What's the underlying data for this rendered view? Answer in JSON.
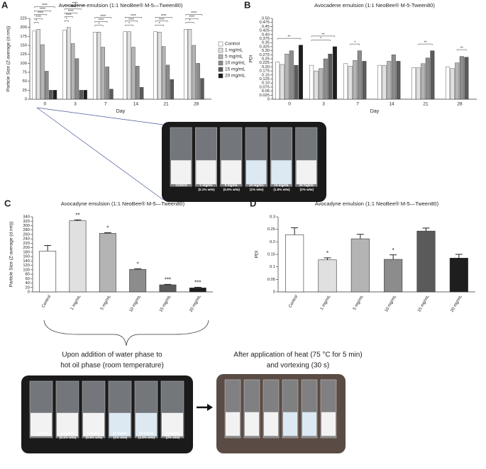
{
  "chart_data": [
    {
      "type": "bar",
      "panel": "A",
      "title": "Avocadene emulsion (1:1 NeoBee® M-5—Tween80)",
      "x_label": "Day",
      "y_label": "Particle Size (Z-average (d.nm))",
      "categories": [
        "0",
        "3",
        "7",
        "14",
        "21",
        "28"
      ],
      "series": [
        {
          "name": "Control",
          "color": "#ffffff",
          "values": [
            190,
            192,
            187,
            188,
            188,
            195
          ]
        },
        {
          "name": "1 mg/mL",
          "color": "#e0e0e0",
          "values": [
            195,
            200,
            187,
            188,
            187,
            195
          ]
        },
        {
          "name": "5 mg/mL",
          "color": "#b4b4b4",
          "values": [
            152,
            155,
            145,
            145,
            147,
            150
          ]
        },
        {
          "name": "10 mg/mL",
          "color": "#8c8c8c",
          "values": [
            78,
            113,
            90,
            92,
            95,
            100
          ]
        },
        {
          "name": "15 mg/mL",
          "color": "#5a5a5a",
          "values": [
            25,
            25,
            28,
            33,
            55,
            58
          ]
        },
        {
          "name": "20 mg/mL",
          "color": "#1e1e1e",
          "values": [
            25,
            25,
            null,
            null,
            null,
            null
          ]
        }
      ],
      "ylim": [
        0,
        225
      ],
      "yticks": [
        0,
        25,
        50,
        75,
        100,
        125,
        150,
        175,
        200,
        225
      ],
      "legend": "right",
      "brackets": [
        {
          "category": 0,
          "from": 0,
          "to": 1,
          "label": "*"
        },
        {
          "category": 0,
          "from": 0,
          "to": 2,
          "label": "****"
        },
        {
          "category": 0,
          "from": 0,
          "to": 3,
          "label": "****"
        },
        {
          "category": 0,
          "from": 0,
          "to": 4,
          "label": "****"
        },
        {
          "category": 0,
          "from": 0,
          "to": 5,
          "label": "****"
        },
        {
          "category": 1,
          "from": 0,
          "to": 1,
          "label": "*"
        },
        {
          "category": 1,
          "from": 0,
          "to": 2,
          "label": "****"
        },
        {
          "category": 1,
          "from": 0,
          "to": 3,
          "label": "****"
        },
        {
          "category": 1,
          "from": 0,
          "to": 4,
          "label": "****"
        },
        {
          "category": 1,
          "from": 0,
          "to": 5,
          "label": "****"
        },
        {
          "category": 2,
          "from": 0,
          "to": 2,
          "label": "*"
        },
        {
          "category": 2,
          "from": 0,
          "to": 3,
          "label": "****"
        },
        {
          "category": 2,
          "from": 0,
          "to": 4,
          "label": "****"
        },
        {
          "category": 3,
          "from": 0,
          "to": 2,
          "label": "*"
        },
        {
          "category": 3,
          "from": 0,
          "to": 3,
          "label": "****"
        },
        {
          "category": 3,
          "from": 0,
          "to": 4,
          "label": "****"
        },
        {
          "category": 4,
          "from": 0,
          "to": 2,
          "label": "*"
        },
        {
          "category": 4,
          "from": 0,
          "to": 3,
          "label": "****"
        },
        {
          "category": 4,
          "from": 0,
          "to": 4,
          "label": "****"
        },
        {
          "category": 5,
          "from": 0,
          "to": 2,
          "label": "*"
        },
        {
          "category": 5,
          "from": 0,
          "to": 3,
          "label": "****"
        },
        {
          "category": 5,
          "from": 0,
          "to": 4,
          "label": "****"
        }
      ]
    },
    {
      "type": "bar",
      "panel": "B",
      "title": "Avocadene emulsion (1:1 NeoBee® M-5-Tween80)",
      "x_label": "Day",
      "y_label": "PDI",
      "categories": [
        "0",
        "3",
        "7",
        "14",
        "21",
        "28"
      ],
      "series": [
        {
          "name": "Control",
          "color": "#ffffff",
          "values": [
            0.23,
            0.21,
            0.22,
            0.21,
            0.195,
            0.2
          ]
        },
        {
          "name": "1 mg/mL",
          "color": "#e0e0e0",
          "values": [
            0.215,
            0.175,
            0.205,
            0.21,
            0.195,
            0.19
          ]
        },
        {
          "name": "5 mg/mL",
          "color": "#b4b4b4",
          "values": [
            0.28,
            0.19,
            0.24,
            0.235,
            0.22,
            0.225
          ]
        },
        {
          "name": "10 mg/mL",
          "color": "#8c8c8c",
          "values": [
            0.3,
            0.25,
            0.3,
            0.275,
            0.255,
            0.265
          ]
        },
        {
          "name": "15 mg/mL",
          "color": "#5a5a5a",
          "values": [
            0.21,
            0.28,
            0.235,
            0.235,
            0.3,
            0.26
          ]
        },
        {
          "name": "20 mg/mL",
          "color": "#1e1e1e",
          "values": [
            0.335,
            0.325,
            null,
            null,
            null,
            null
          ]
        }
      ],
      "ylim": [
        0,
        0.5
      ],
      "yticks": [
        0,
        0.025,
        0.05,
        0.075,
        {
          "value": 0.1,
          "label": "0.10"
        },
        0.125,
        0.15,
        0.175,
        {
          "value": 0.2,
          "label": "0.20"
        },
        0.225,
        0.25,
        0.275,
        {
          "value": 0.3,
          "label": "0.30"
        },
        0.325,
        0.35,
        0.375,
        {
          "value": 0.4,
          "label": "0.40"
        },
        0.425,
        0.45,
        0.475,
        {
          "value": 0.5,
          "label": "0.50"
        }
      ],
      "brackets": [
        {
          "category": 0,
          "from": 0,
          "to": 5,
          "label": "**"
        },
        {
          "category": 1,
          "from": 0,
          "to": 4,
          "label": "*"
        },
        {
          "category": 1,
          "from": 0,
          "to": 5,
          "label": "**"
        },
        {
          "category": 2,
          "from": 1,
          "to": 3,
          "label": "*"
        },
        {
          "category": 4,
          "from": 1,
          "to": 4,
          "label": "**"
        },
        {
          "category": 5,
          "from": 2,
          "to": 4,
          "label": "**"
        }
      ]
    },
    {
      "type": "bar",
      "panel": "C",
      "title": "Avocadyne emulsion (1:1 NeoBee® M-5—Tween80)",
      "y_label": "Particle Size (Z-average (d.nm))",
      "categories": [
        "Control",
        "1 mg/mL",
        "5 mg/mL",
        "10 mg/mL",
        "15 mg/mL",
        "20 mg/mL"
      ],
      "values": [
        185,
        322,
        265,
        102,
        32,
        18
      ],
      "errors": [
        25,
        4,
        3,
        3,
        2,
        3
      ],
      "colors": [
        "#ffffff",
        "#e0e0e0",
        "#b4b4b4",
        "#8c8c8c",
        "#5a5a5a",
        "#1e1e1e"
      ],
      "annotations": [
        null,
        "**",
        "*",
        "*",
        "***",
        "***"
      ],
      "ylim": [
        0,
        340
      ],
      "yticks": [
        0,
        20,
        40,
        60,
        80,
        100,
        120,
        140,
        160,
        180,
        200,
        220,
        240,
        260,
        280,
        300,
        320,
        340
      ]
    },
    {
      "type": "bar",
      "panel": "D",
      "title": "Avocadyne emulsion (1:1 NeoBee® M-5—Tween80)",
      "y_label": "PDI",
      "categories": [
        "Control",
        "1 mg/mL",
        "5 mg/mL",
        "10 mg/mL",
        "15 mg/mL",
        "20 mg/mL"
      ],
      "values": [
        0.228,
        0.128,
        0.212,
        0.13,
        0.243,
        0.135
      ],
      "errors": [
        0.028,
        0.008,
        0.018,
        0.018,
        0.012,
        0.015
      ],
      "colors": [
        "#ffffff",
        "#e0e0e0",
        "#b4b4b4",
        "#8c8c8c",
        "#5a5a5a",
        "#1e1e1e"
      ],
      "annotations": [
        null,
        "*",
        null,
        "*",
        null,
        null
      ],
      "ylim": [
        0,
        0.3
      ],
      "yticks": [
        0,
        0.05,
        0.1,
        0.15,
        0.2,
        0.25,
        0.3
      ]
    }
  ],
  "photos": [
    {
      "labels": [
        [
          "Control"
        ],
        [
          "1 mg/mL",
          "(0.1% w/w)"
        ],
        [
          "5 mg/mL",
          "(0.5% w/w)"
        ],
        [
          "10 mg/mL",
          "(1% w/w)"
        ],
        [
          "15 mg/mL",
          "(1.5% w/w)"
        ],
        [
          "20 mg/mL",
          "(2% w/w)"
        ]
      ]
    },
    {
      "caption": [
        "Upon addition of water phase to",
        "hot oil phase (room temperature)"
      ],
      "labels": [
        [
          "Control"
        ],
        [
          "1 mg/mL",
          "(0.1% w/w)"
        ],
        [
          "5 mg/mL",
          "(0.5% w/w)"
        ],
        [
          "10 mg/mL",
          "(1% w/w)"
        ],
        [
          "15 mg/mL",
          "(1.5% w/w)"
        ],
        [
          "20 mg/mL",
          "(2% w/w)"
        ]
      ]
    },
    {
      "caption": [
        "After application of heat (75 °C for 5 min)",
        "and vortexing (30 s)"
      ]
    }
  ]
}
